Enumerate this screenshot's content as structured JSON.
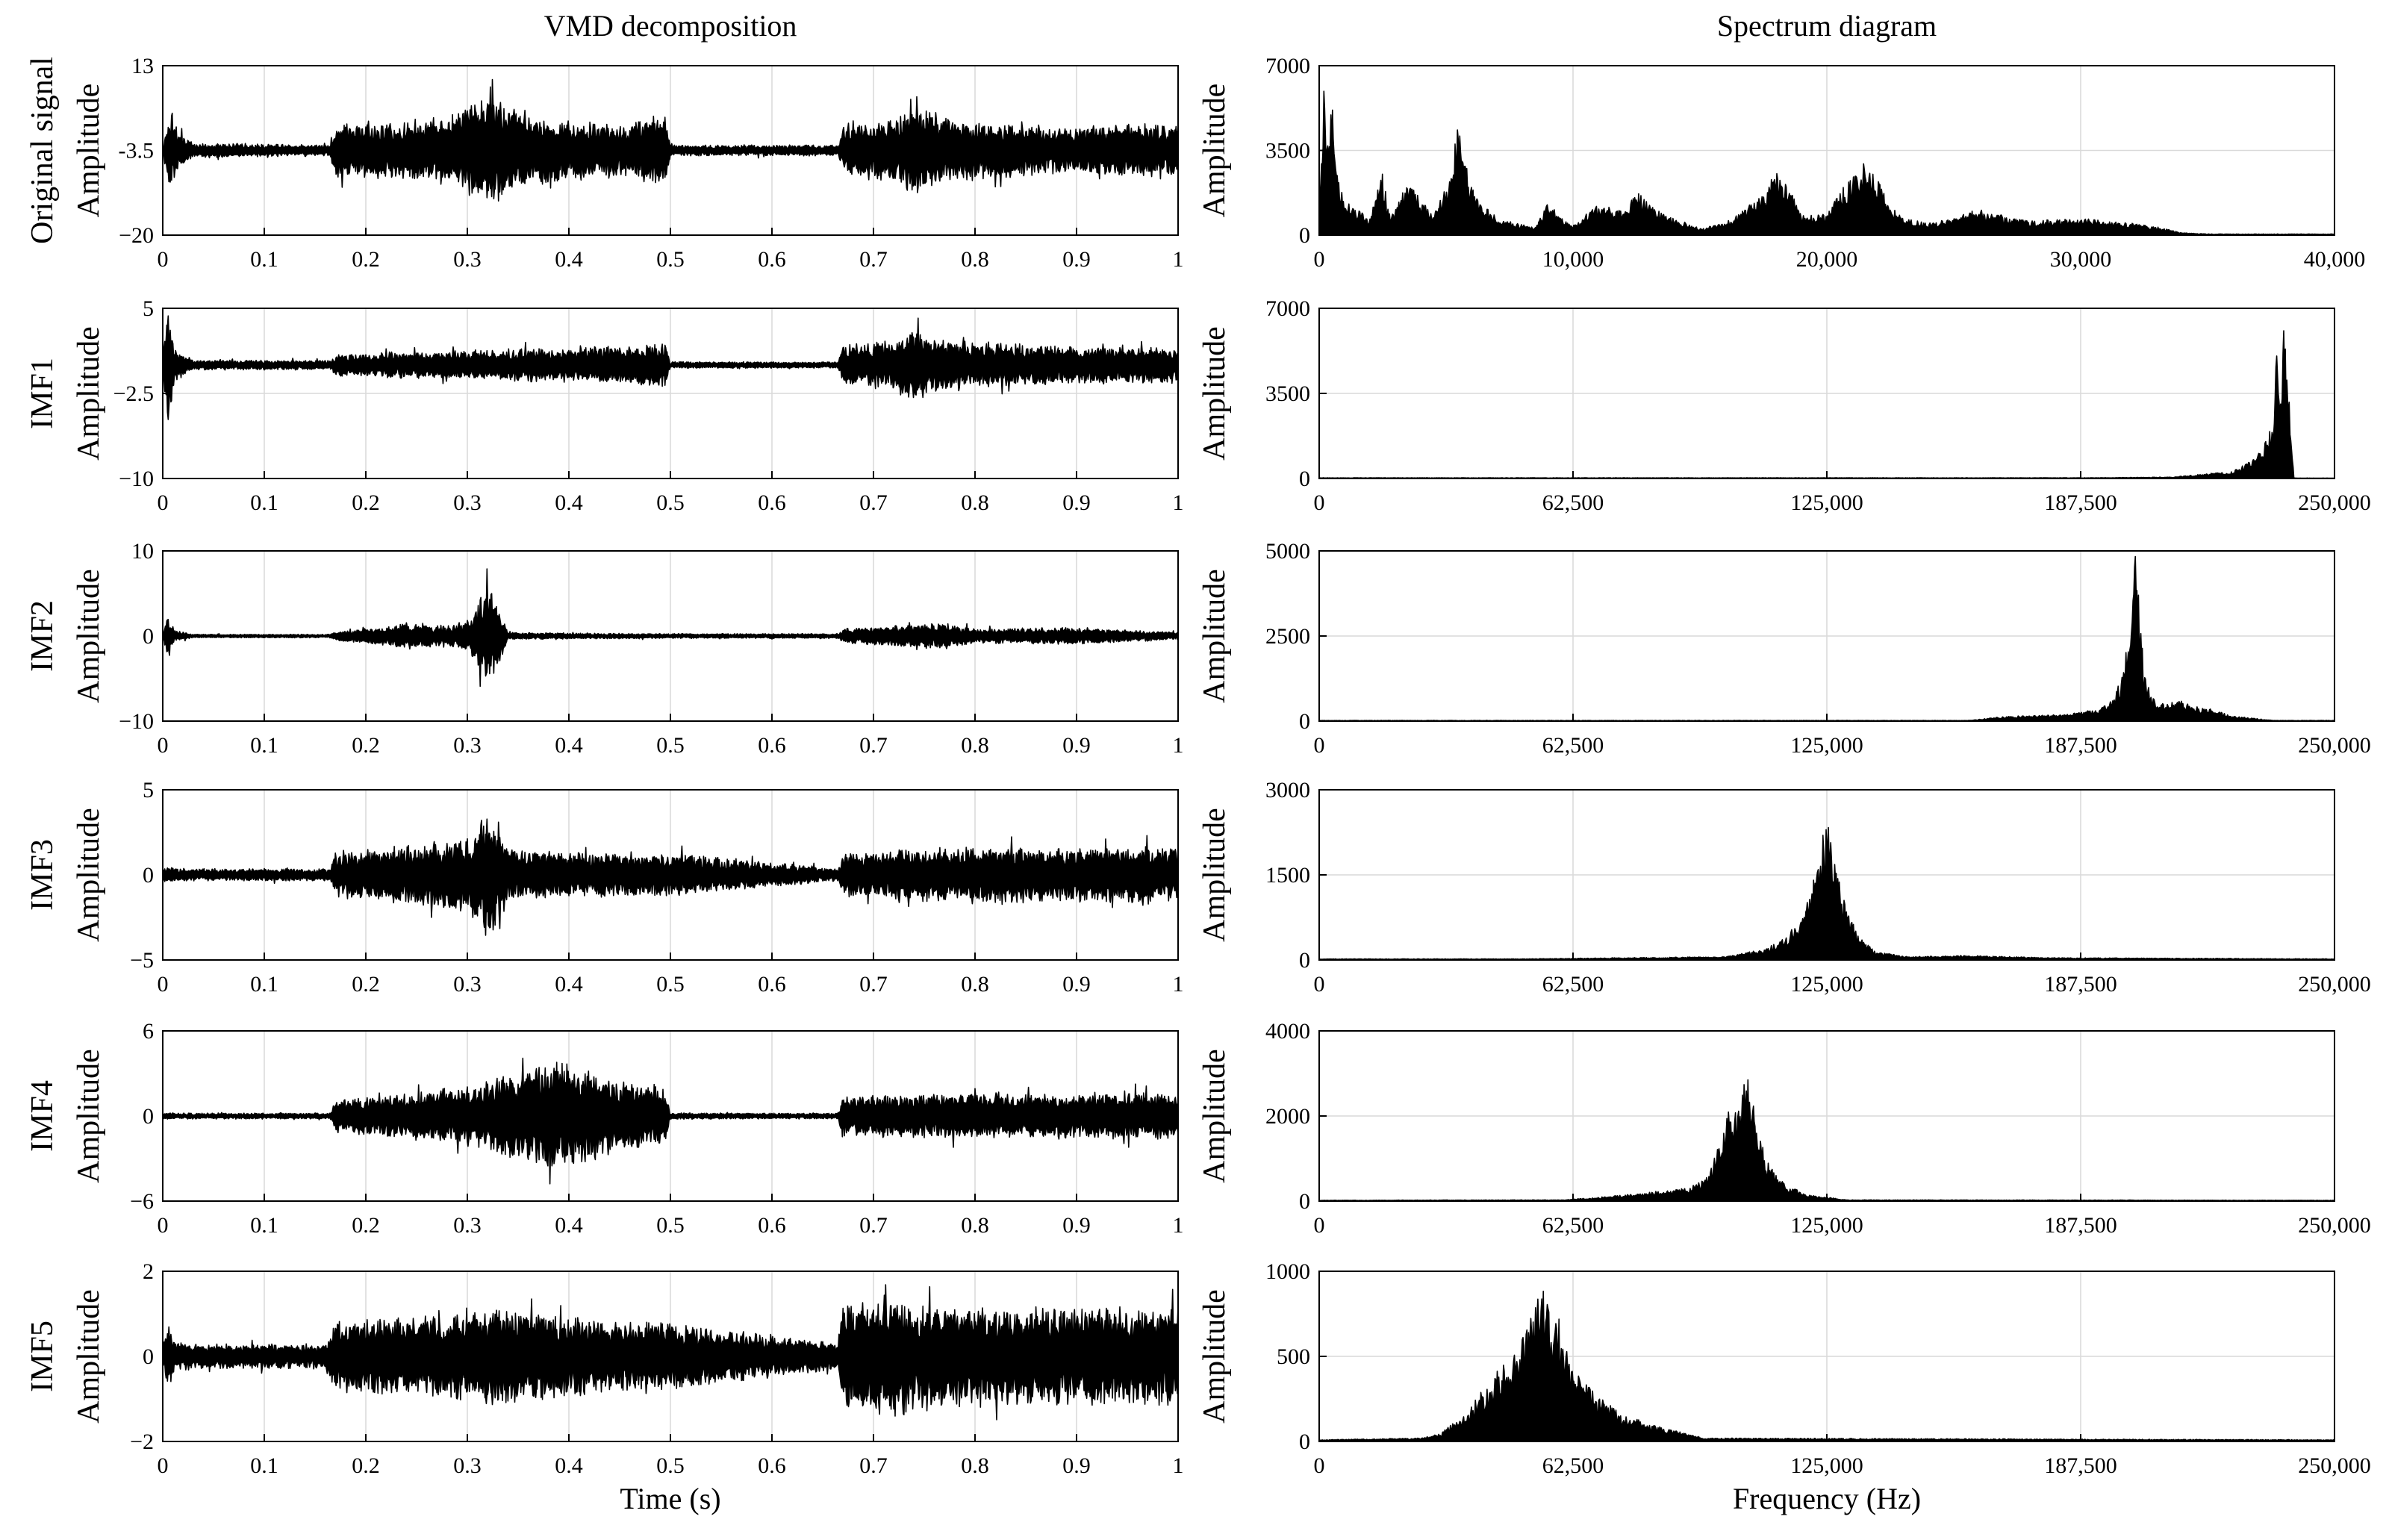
{
  "chart_data": [
    {
      "type": "line",
      "title": "VMD decomposition",
      "row_label": "Original signal",
      "ylabel": "Amplitude",
      "xlabel": "",
      "ylim": [
        -20,
        13
      ],
      "yticks": [
        "13",
        "-3.5",
        "−20"
      ],
      "yticks_v": [
        13,
        -3.5,
        -20
      ],
      "xlim": [
        0,
        1
      ],
      "xticks": [
        "0",
        "0.1",
        "0.2",
        "0.3",
        "0.4",
        "0.5",
        "0.6",
        "0.7",
        "0.8",
        "0.9",
        "1"
      ],
      "xticks_v": [
        0,
        0.1,
        0.2,
        0.3,
        0.4,
        0.5,
        0.6,
        0.7,
        0.8,
        0.9,
        1
      ],
      "center": -3.5,
      "envelope": {
        "t": [
          0,
          0.008,
          0.015,
          0.03,
          0.165,
          0.17,
          0.24,
          0.29,
          0.3,
          0.33,
          0.36,
          0.4,
          0.45,
          0.495,
          0.5,
          0.665,
          0.67,
          0.7,
          0.73,
          0.74,
          0.78,
          0.85,
          0.9,
          0.95,
          1
        ],
        "amp": [
          1.2,
          12,
          5,
          2,
          1.5,
          7.5,
          8,
          10,
          13,
          15,
          9,
          8,
          7,
          10,
          1.5,
          1.5,
          7,
          8,
          10,
          12,
          9,
          7,
          6.5,
          7,
          7
        ]
      }
    },
    {
      "type": "line",
      "title": "",
      "row_label": "IMF1",
      "ylabel": "Amplitude",
      "xlabel": "",
      "ylim": [
        -10,
        5
      ],
      "yticks": [
        "5",
        "−2.5",
        "−10"
      ],
      "yticks_v": [
        5,
        -2.5,
        -10
      ],
      "xlim": [
        0,
        1
      ],
      "xticks": [
        "0",
        "0.1",
        "0.2",
        "0.3",
        "0.4",
        "0.5",
        "0.6",
        "0.7",
        "0.8",
        "0.9",
        "1"
      ],
      "xticks_v": [
        0,
        0.1,
        0.2,
        0.3,
        0.4,
        0.5,
        0.6,
        0.7,
        0.8,
        0.9,
        1
      ],
      "center": 0,
      "envelope": {
        "t": [
          0,
          0.005,
          0.012,
          0.03,
          0.165,
          0.17,
          0.3,
          0.35,
          0.45,
          0.495,
          0.5,
          0.665,
          0.67,
          0.72,
          0.74,
          0.76,
          0.85,
          0.95,
          1
        ],
        "amp": [
          0.5,
          8,
          2,
          0.6,
          0.6,
          1.4,
          1.8,
          2,
          2.3,
          2.8,
          0.4,
          0.4,
          2.5,
          3,
          5,
          3.2,
          2.5,
          2.2,
          2.2
        ]
      }
    },
    {
      "type": "line",
      "title": "",
      "row_label": "IMF2",
      "ylabel": "Amplitude",
      "xlabel": "",
      "ylim": [
        -10,
        10
      ],
      "yticks": [
        "10",
        "0",
        "−10"
      ],
      "yticks_v": [
        10,
        0,
        -10
      ],
      "xlim": [
        0,
        1
      ],
      "xticks": [
        "0",
        "0.1",
        "0.2",
        "0.3",
        "0.4",
        "0.5",
        "0.6",
        "0.7",
        "0.8",
        "0.9",
        "1"
      ],
      "xticks_v": [
        0,
        0.1,
        0.2,
        0.3,
        0.4,
        0.5,
        0.6,
        0.7,
        0.8,
        0.9,
        1
      ],
      "center": 0,
      "envelope": {
        "t": [
          0,
          0.005,
          0.012,
          0.03,
          0.165,
          0.17,
          0.2,
          0.24,
          0.28,
          0.3,
          0.32,
          0.33,
          0.34,
          0.4,
          0.5,
          0.665,
          0.67,
          0.7,
          0.77,
          0.8,
          0.9,
          0.95,
          1
        ],
        "amp": [
          0.3,
          3.5,
          1,
          0.3,
          0.3,
          0.8,
          1.2,
          2.2,
          1.8,
          2.5,
          8.5,
          5,
          0.6,
          0.5,
          0.4,
          0.4,
          1.2,
          1.5,
          2.2,
          1.2,
          1.4,
          1,
          0.6
        ]
      }
    },
    {
      "type": "line",
      "title": "",
      "row_label": "IMF3",
      "ylabel": "Amplitude",
      "xlabel": "",
      "ylim": [
        -5,
        5
      ],
      "yticks": [
        "5",
        "0",
        "−5"
      ],
      "yticks_v": [
        5,
        0,
        -5
      ],
      "xlim": [
        0,
        1
      ],
      "xticks": [
        "0",
        "0.1",
        "0.2",
        "0.3",
        "0.4",
        "0.5",
        "0.6",
        "0.7",
        "0.8",
        "0.9",
        "1"
      ],
      "xticks_v": [
        0,
        0.1,
        0.2,
        0.3,
        0.4,
        0.5,
        0.6,
        0.7,
        0.8,
        0.9,
        1
      ],
      "center": 0,
      "envelope": {
        "t": [
          0,
          0.03,
          0.165,
          0.17,
          0.25,
          0.3,
          0.32,
          0.33,
          0.34,
          0.4,
          0.5,
          0.665,
          0.67,
          0.8,
          0.9,
          1
        ],
        "amp": [
          0.6,
          0.5,
          0.5,
          1.8,
          2.5,
          3,
          5,
          4.6,
          2.2,
          1.8,
          1.8,
          0.5,
          1.8,
          2.4,
          2.2,
          2.4
        ]
      }
    },
    {
      "type": "line",
      "title": "",
      "row_label": "IMF4",
      "ylabel": "Amplitude",
      "xlabel": "",
      "ylim": [
        -6,
        6
      ],
      "yticks": [
        "6",
        "0",
        "−6"
      ],
      "yticks_v": [
        6,
        0,
        -6
      ],
      "xlim": [
        0,
        1
      ],
      "xticks": [
        "0",
        "0.1",
        "0.2",
        "0.3",
        "0.4",
        "0.5",
        "0.6",
        "0.7",
        "0.8",
        "0.9",
        "1"
      ],
      "xticks_v": [
        0,
        0.1,
        0.2,
        0.3,
        0.4,
        0.5,
        0.6,
        0.7,
        0.8,
        0.9,
        1
      ],
      "center": 0,
      "envelope": {
        "t": [
          0,
          0.03,
          0.165,
          0.17,
          0.25,
          0.3,
          0.35,
          0.38,
          0.42,
          0.45,
          0.495,
          0.5,
          0.665,
          0.67,
          0.8,
          0.9,
          1
        ],
        "amp": [
          0.3,
          0.3,
          0.3,
          1.6,
          2.4,
          3,
          4.5,
          5.5,
          4.5,
          3.5,
          3,
          0.3,
          0.3,
          2,
          2.3,
          2.2,
          2.3
        ]
      }
    },
    {
      "type": "line",
      "title": "",
      "row_label": "IMF5",
      "ylabel": "Amplitude",
      "xlabel": "Time (s)",
      "ylim": [
        -2,
        2
      ],
      "yticks": [
        "2",
        "0",
        "−2"
      ],
      "yticks_v": [
        2,
        0,
        -2
      ],
      "xlim": [
        0,
        1
      ],
      "xticks": [
        "0",
        "0.1",
        "0.2",
        "0.3",
        "0.4",
        "0.5",
        "0.6",
        "0.7",
        "0.8",
        "0.9",
        "1"
      ],
      "xticks_v": [
        0,
        0.1,
        0.2,
        0.3,
        0.4,
        0.5,
        0.6,
        0.7,
        0.8,
        0.9,
        1
      ],
      "center": 0,
      "envelope": {
        "t": [
          0,
          0.005,
          0.012,
          0.03,
          0.16,
          0.17,
          0.3,
          0.33,
          0.4,
          0.5,
          0.665,
          0.67,
          0.72,
          0.75,
          0.8,
          0.9,
          1
        ],
        "amp": [
          0.3,
          1.2,
          0.6,
          0.4,
          0.4,
          1.2,
          1.4,
          1.7,
          1.3,
          1.1,
          0.45,
          1.8,
          2,
          1.8,
          1.7,
          1.6,
          1.6
        ]
      }
    },
    {
      "type": "area",
      "title": "Spectrum diagram",
      "ylabel": "Amplitude",
      "xlabel": "",
      "ylim": [
        0,
        7000
      ],
      "yticks": [
        "7000",
        "3500",
        "0"
      ],
      "yticks_v": [
        7000,
        3500,
        0
      ],
      "xlim": [
        0,
        40000
      ],
      "xticks": [
        "0",
        "10,000",
        "20,000",
        "30,000",
        "40,000"
      ],
      "xticks_v": [
        0,
        10000,
        20000,
        30000,
        40000
      ],
      "envelope": {
        "f": [
          0,
          200,
          300,
          500,
          700,
          1000,
          2000,
          2500,
          2800,
          3500,
          4500,
          5200,
          5500,
          6000,
          7000,
          8500,
          9000,
          10000,
          11000,
          12000,
          12500,
          13500,
          15000,
          16000,
          17500,
          18000,
          18500,
          19000,
          20000,
          21000,
          21500,
          22000,
          22500,
          23000,
          24000,
          25000,
          26000,
          27000,
          28000,
          30000,
          32000,
          33000,
          34000,
          35000,
          40000
        ],
        "amp": [
          2000,
          6500,
          4200,
          6000,
          2600,
          1500,
          700,
          2600,
          700,
          2200,
          800,
          2600,
          5000,
          2000,
          700,
          300,
          1300,
          400,
          1300,
          1000,
          1800,
          900,
          300,
          500,
          1800,
          2600,
          2000,
          800,
          900,
          2600,
          3200,
          2300,
          1200,
          700,
          500,
          700,
          1100,
          800,
          600,
          700,
          500,
          350,
          100,
          50,
          50
        ]
      }
    },
    {
      "type": "area",
      "title": "",
      "ylabel": "Amplitude",
      "xlabel": "",
      "ylim": [
        0,
        7000
      ],
      "yticks": [
        "7000",
        "3500",
        "0"
      ],
      "yticks_v": [
        7000,
        3500,
        0
      ],
      "xlim": [
        0,
        250000
      ],
      "xticks": [
        "0",
        "62,500",
        "125,000",
        "187,500",
        "250,000"
      ],
      "xticks_v": [
        0,
        62500,
        125000,
        187500,
        250000
      ],
      "envelope": {
        "f": [
          0,
          190000,
          210000,
          225000,
          230000,
          232000,
          234000,
          235000,
          236000,
          237000,
          237500,
          238000,
          239000,
          240000,
          250000
        ],
        "amp": [
          30,
          30,
          60,
          300,
          800,
          1200,
          2000,
          2500,
          6200,
          3000,
          6800,
          5800,
          3000,
          20,
          20
        ]
      }
    },
    {
      "type": "area",
      "title": "",
      "ylabel": "Amplitude",
      "xlabel": "",
      "ylim": [
        0,
        5000
      ],
      "yticks": [
        "5000",
        "2500",
        "0"
      ],
      "yticks_v": [
        5000,
        2500,
        0
      ],
      "xlim": [
        0,
        250000
      ],
      "xticks": [
        "0",
        "62,500",
        "125,000",
        "187,500",
        "250,000"
      ],
      "xticks_v": [
        0,
        62500,
        125000,
        187500,
        250000
      ],
      "envelope": {
        "f": [
          0,
          160000,
          170000,
          180000,
          185000,
          188000,
          192000,
          195000,
          198000,
          200000,
          201000,
          202000,
          203000,
          205000,
          208000,
          212000,
          215000,
          220000,
          225000,
          235000,
          250000
        ],
        "amp": [
          20,
          20,
          150,
          180,
          200,
          300,
          350,
          600,
          1400,
          3500,
          5000,
          3800,
          1500,
          700,
          500,
          600,
          450,
          350,
          150,
          20,
          20
        ]
      }
    },
    {
      "type": "area",
      "title": "",
      "ylabel": "Amplitude",
      "xlabel": "",
      "ylim": [
        0,
        3000
      ],
      "yticks": [
        "3000",
        "1500",
        "0"
      ],
      "yticks_v": [
        3000,
        1500,
        0
      ],
      "xlim": [
        0,
        250000
      ],
      "xticks": [
        "0",
        "62,500",
        "125,000",
        "187,500",
        "250,000"
      ],
      "xticks_v": [
        0,
        62500,
        125000,
        187500,
        250000
      ],
      "envelope": {
        "f": [
          0,
          50000,
          100000,
          110000,
          115000,
          118000,
          121000,
          123000,
          125000,
          126000,
          128000,
          130000,
          133000,
          137000,
          145000,
          160000,
          180000,
          250000
        ],
        "amp": [
          20,
          20,
          60,
          200,
          400,
          700,
          1200,
          2000,
          2700,
          2200,
          1500,
          900,
          400,
          150,
          60,
          80,
          40,
          20
        ]
      }
    },
    {
      "type": "area",
      "title": "",
      "ylabel": "Amplitude",
      "xlabel": "",
      "ylim": [
        0,
        4000
      ],
      "yticks": [
        "4000",
        "2000",
        "0"
      ],
      "yticks_v": [
        4000,
        2000,
        0
      ],
      "xlim": [
        0,
        250000
      ],
      "xticks": [
        "0",
        "62,500",
        "125,000",
        "187,500",
        "250,000"
      ],
      "xticks_v": [
        0,
        62500,
        125000,
        187500,
        250000
      ],
      "envelope": {
        "f": [
          0,
          60000,
          70000,
          80000,
          90000,
          95000,
          98000,
          101000,
          103000,
          105000,
          107000,
          110000,
          115000,
          120000,
          130000,
          250000
        ],
        "amp": [
          20,
          30,
          100,
          200,
          300,
          500,
          1200,
          2400,
          2000,
          3100,
          2300,
          1000,
          400,
          150,
          30,
          20
        ]
      }
    },
    {
      "type": "area",
      "title": "",
      "ylabel": "Amplitude",
      "xlabel": "Frequency (Hz)",
      "ylim": [
        0,
        1000
      ],
      "yticks": [
        "1000",
        "500",
        "0"
      ],
      "yticks_v": [
        1000,
        500,
        0
      ],
      "xlim": [
        0,
        250000
      ],
      "xticks": [
        "0",
        "62,500",
        "125,000",
        "187,500",
        "250,000"
      ],
      "xticks_v": [
        0,
        62500,
        125000,
        187500,
        250000
      ],
      "envelope": {
        "f": [
          0,
          25000,
          30000,
          35000,
          40000,
          45000,
          50000,
          52000,
          55000,
          58000,
          60000,
          62000,
          65000,
          70000,
          75000,
          80000,
          85000,
          90000,
          95000,
          250000
        ],
        "amp": [
          10,
          20,
          50,
          150,
          300,
          450,
          600,
          750,
          900,
          800,
          650,
          500,
          350,
          250,
          150,
          120,
          80,
          50,
          20,
          10
        ]
      }
    }
  ]
}
